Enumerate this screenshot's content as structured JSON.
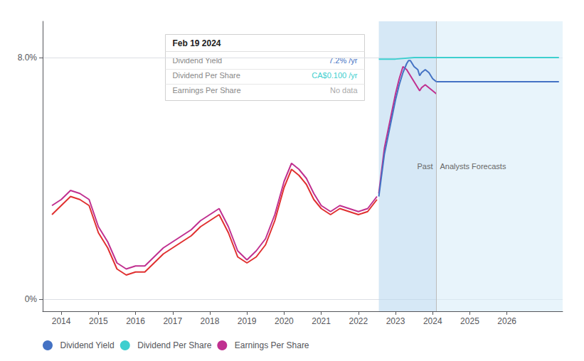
{
  "chart_data": {
    "type": "line",
    "xlim": [
      2013.5,
      2027.5
    ],
    "ylim": [
      -0.004,
      0.092
    ],
    "xticks": [
      2014,
      2015,
      2016,
      2017,
      2018,
      2019,
      2020,
      2021,
      2022,
      2023,
      2024,
      2025,
      2026
    ],
    "yticks": [
      {
        "value": 0.0,
        "label": "0%"
      },
      {
        "value": 0.08,
        "label": "8.0%"
      }
    ],
    "grid": "y",
    "legend": "lower left",
    "series": [
      {
        "color": "#e03030",
        "x": [
          2013.75,
          2014.0,
          2014.25,
          2014.5,
          2014.75,
          2015.0,
          2015.25,
          2015.5,
          2015.75,
          2016.0,
          2016.25,
          2016.5,
          2016.75,
          2017.0,
          2017.25,
          2017.5,
          2017.75,
          2018.0,
          2018.25,
          2018.5,
          2018.75,
          2019.0,
          2019.25,
          2019.5,
          2019.75,
          2020.0,
          2020.2,
          2020.4,
          2020.6,
          2020.8,
          2021.0,
          2021.25,
          2021.5,
          2021.75,
          2022.0,
          2022.25,
          2022.5
        ],
        "values": [
          0.028,
          0.031,
          0.034,
          0.033,
          0.031,
          0.022,
          0.017,
          0.01,
          0.008,
          0.009,
          0.009,
          0.012,
          0.015,
          0.017,
          0.019,
          0.021,
          0.024,
          0.026,
          0.028,
          0.022,
          0.014,
          0.012,
          0.014,
          0.018,
          0.026,
          0.037,
          0.043,
          0.041,
          0.038,
          0.033,
          0.03,
          0.028,
          0.03,
          0.029,
          0.028,
          0.029,
          0.033
        ]
      },
      {
        "name": "Dividend Yield",
        "color": "#4472c4",
        "x": [
          2022.55,
          2022.7,
          2022.9,
          2023.0,
          2023.1,
          2023.2,
          2023.3,
          2023.35,
          2023.4,
          2023.5,
          2023.6,
          2023.65,
          2023.7,
          2023.8,
          2023.9,
          2024.0,
          2024.1
        ],
        "values": [
          0.034,
          0.048,
          0.06,
          0.066,
          0.071,
          0.075,
          0.078,
          0.079,
          0.079,
          0.077,
          0.076,
          0.074,
          0.075,
          0.076,
          0.075,
          0.073,
          0.072
        ]
      },
      {
        "name": "Dividend Yield",
        "color": "#4472c4",
        "x": [
          2024.1,
          2025.0,
          2026.0,
          2027.4
        ],
        "values": [
          0.072,
          0.072,
          0.072,
          0.072
        ]
      },
      {
        "name": "Dividend Per Share",
        "color": "#3ecfcf",
        "x": [
          2022.55,
          2023.0,
          2023.5,
          2024.0,
          2024.1,
          2025.0,
          2026.0,
          2027.4
        ],
        "values": [
          0.0795,
          0.0795,
          0.08,
          0.08,
          0.08,
          0.08,
          0.08,
          0.08
        ]
      },
      {
        "name": "Earnings Per Share",
        "color": "#c03090",
        "x": [
          2013.75,
          2014.0,
          2014.25,
          2014.5,
          2014.75,
          2015.0,
          2015.25,
          2015.5,
          2015.75,
          2016.0,
          2016.25,
          2016.5,
          2016.75,
          2017.0,
          2017.25,
          2017.5,
          2017.75,
          2018.0,
          2018.25,
          2018.5,
          2018.75,
          2019.0,
          2019.25,
          2019.5,
          2019.75,
          2020.0,
          2020.2,
          2020.4,
          2020.6,
          2020.8,
          2021.0,
          2021.25,
          2021.5,
          2021.75,
          2022.0,
          2022.25,
          2022.5
        ],
        "values": [
          0.031,
          0.033,
          0.036,
          0.035,
          0.033,
          0.024,
          0.019,
          0.012,
          0.01,
          0.011,
          0.011,
          0.014,
          0.017,
          0.019,
          0.021,
          0.023,
          0.026,
          0.028,
          0.03,
          0.024,
          0.016,
          0.013,
          0.016,
          0.02,
          0.028,
          0.039,
          0.045,
          0.043,
          0.04,
          0.035,
          0.031,
          0.029,
          0.031,
          0.03,
          0.029,
          0.03,
          0.034
        ]
      },
      {
        "name": "Earnings Per Share",
        "color": "#c03090",
        "x": [
          2022.55,
          2022.7,
          2022.9,
          2023.0,
          2023.1,
          2023.2,
          2023.3,
          2023.35,
          2023.4,
          2023.5,
          2023.6,
          2023.65,
          2023.7,
          2023.8,
          2023.9,
          2024.0,
          2024.1
        ],
        "values": [
          0.035,
          0.05,
          0.062,
          0.068,
          0.073,
          0.077,
          0.076,
          0.075,
          0.074,
          0.072,
          0.07,
          0.069,
          0.07,
          0.071,
          0.07,
          0.069,
          0.068
        ]
      }
    ],
    "regions": [
      {
        "from": 2022.55,
        "to": 2024.1,
        "color": "#bbd9f0",
        "label": "Past"
      },
      {
        "from": 2024.1,
        "to": 2027.5,
        "color": "#d8edf8",
        "label": "Analysts Forecasts"
      }
    ],
    "divider": {
      "x": 2024.1,
      "color": "#bbbbbb"
    },
    "tooltip_box": {
      "title": "Feb 19 2024",
      "rows": [
        {
          "label": "Dividend Yield",
          "value": "7.2% /yr",
          "color": "#4472c4"
        },
        {
          "label": "Dividend Per Share",
          "value": "CA$0.100 /yr",
          "color": "#3ecfcf"
        },
        {
          "label": "Earnings Per Share",
          "value": "No data",
          "color": "#aaaaaa"
        }
      ]
    }
  }
}
